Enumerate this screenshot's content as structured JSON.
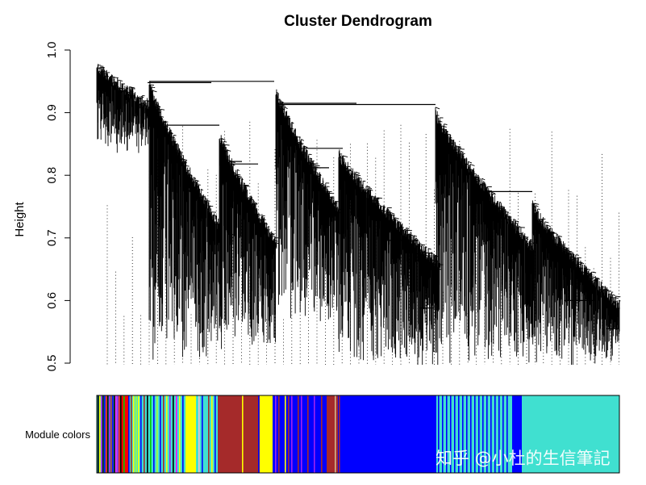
{
  "chart_data": {
    "type": "dendrogram",
    "title": "Cluster Dendrogram",
    "ylabel": "Height",
    "yticks": [
      "0.5",
      "0.6",
      "0.7",
      "0.8",
      "0.9",
      "1.0"
    ],
    "ylim": [
      0.5,
      1.0
    ],
    "module_bar_label": "Module colors",
    "module_colors": [
      "turquoise",
      "brown",
      "yellow",
      "blue",
      "red",
      "green",
      "black",
      "magenta",
      "purple",
      "pink",
      "greenyellow",
      "tan",
      "grey"
    ]
  },
  "palette": {
    "turquoise": "#40E0D0",
    "brown": "#A52A2A",
    "yellow": "#FFFF00",
    "blue": "#0000FF",
    "red": "#FF0000",
    "green": "#00CD00",
    "black": "#000000",
    "magenta": "#FF00FF",
    "purple": "#A020F0",
    "pink": "#FFC0CB",
    "greenyellow": "#ADFF2F",
    "tan": "#D2B48C",
    "grey": "#BEBEBE"
  },
  "watermark": "知乎 @小杜的生信筆記"
}
